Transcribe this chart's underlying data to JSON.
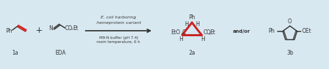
{
  "bg_color": "#d8e8f0",
  "fig_width": 4.8,
  "fig_height": 1.01,
  "dpi": 100,
  "title_text1": "E. coli harboring",
  "title_text2": "hemeprotein variant",
  "subtitle_text1": "M9-N buffer (pH 7.4)",
  "subtitle_text2": "room temperature, 6 h",
  "label_1a": "1a",
  "label_EDA": "EDA",
  "label_2a": "2a",
  "label_3b": "3b",
  "label_andor": "and/or",
  "black": "#333333",
  "red": "#cc2222",
  "gray": "#888888"
}
